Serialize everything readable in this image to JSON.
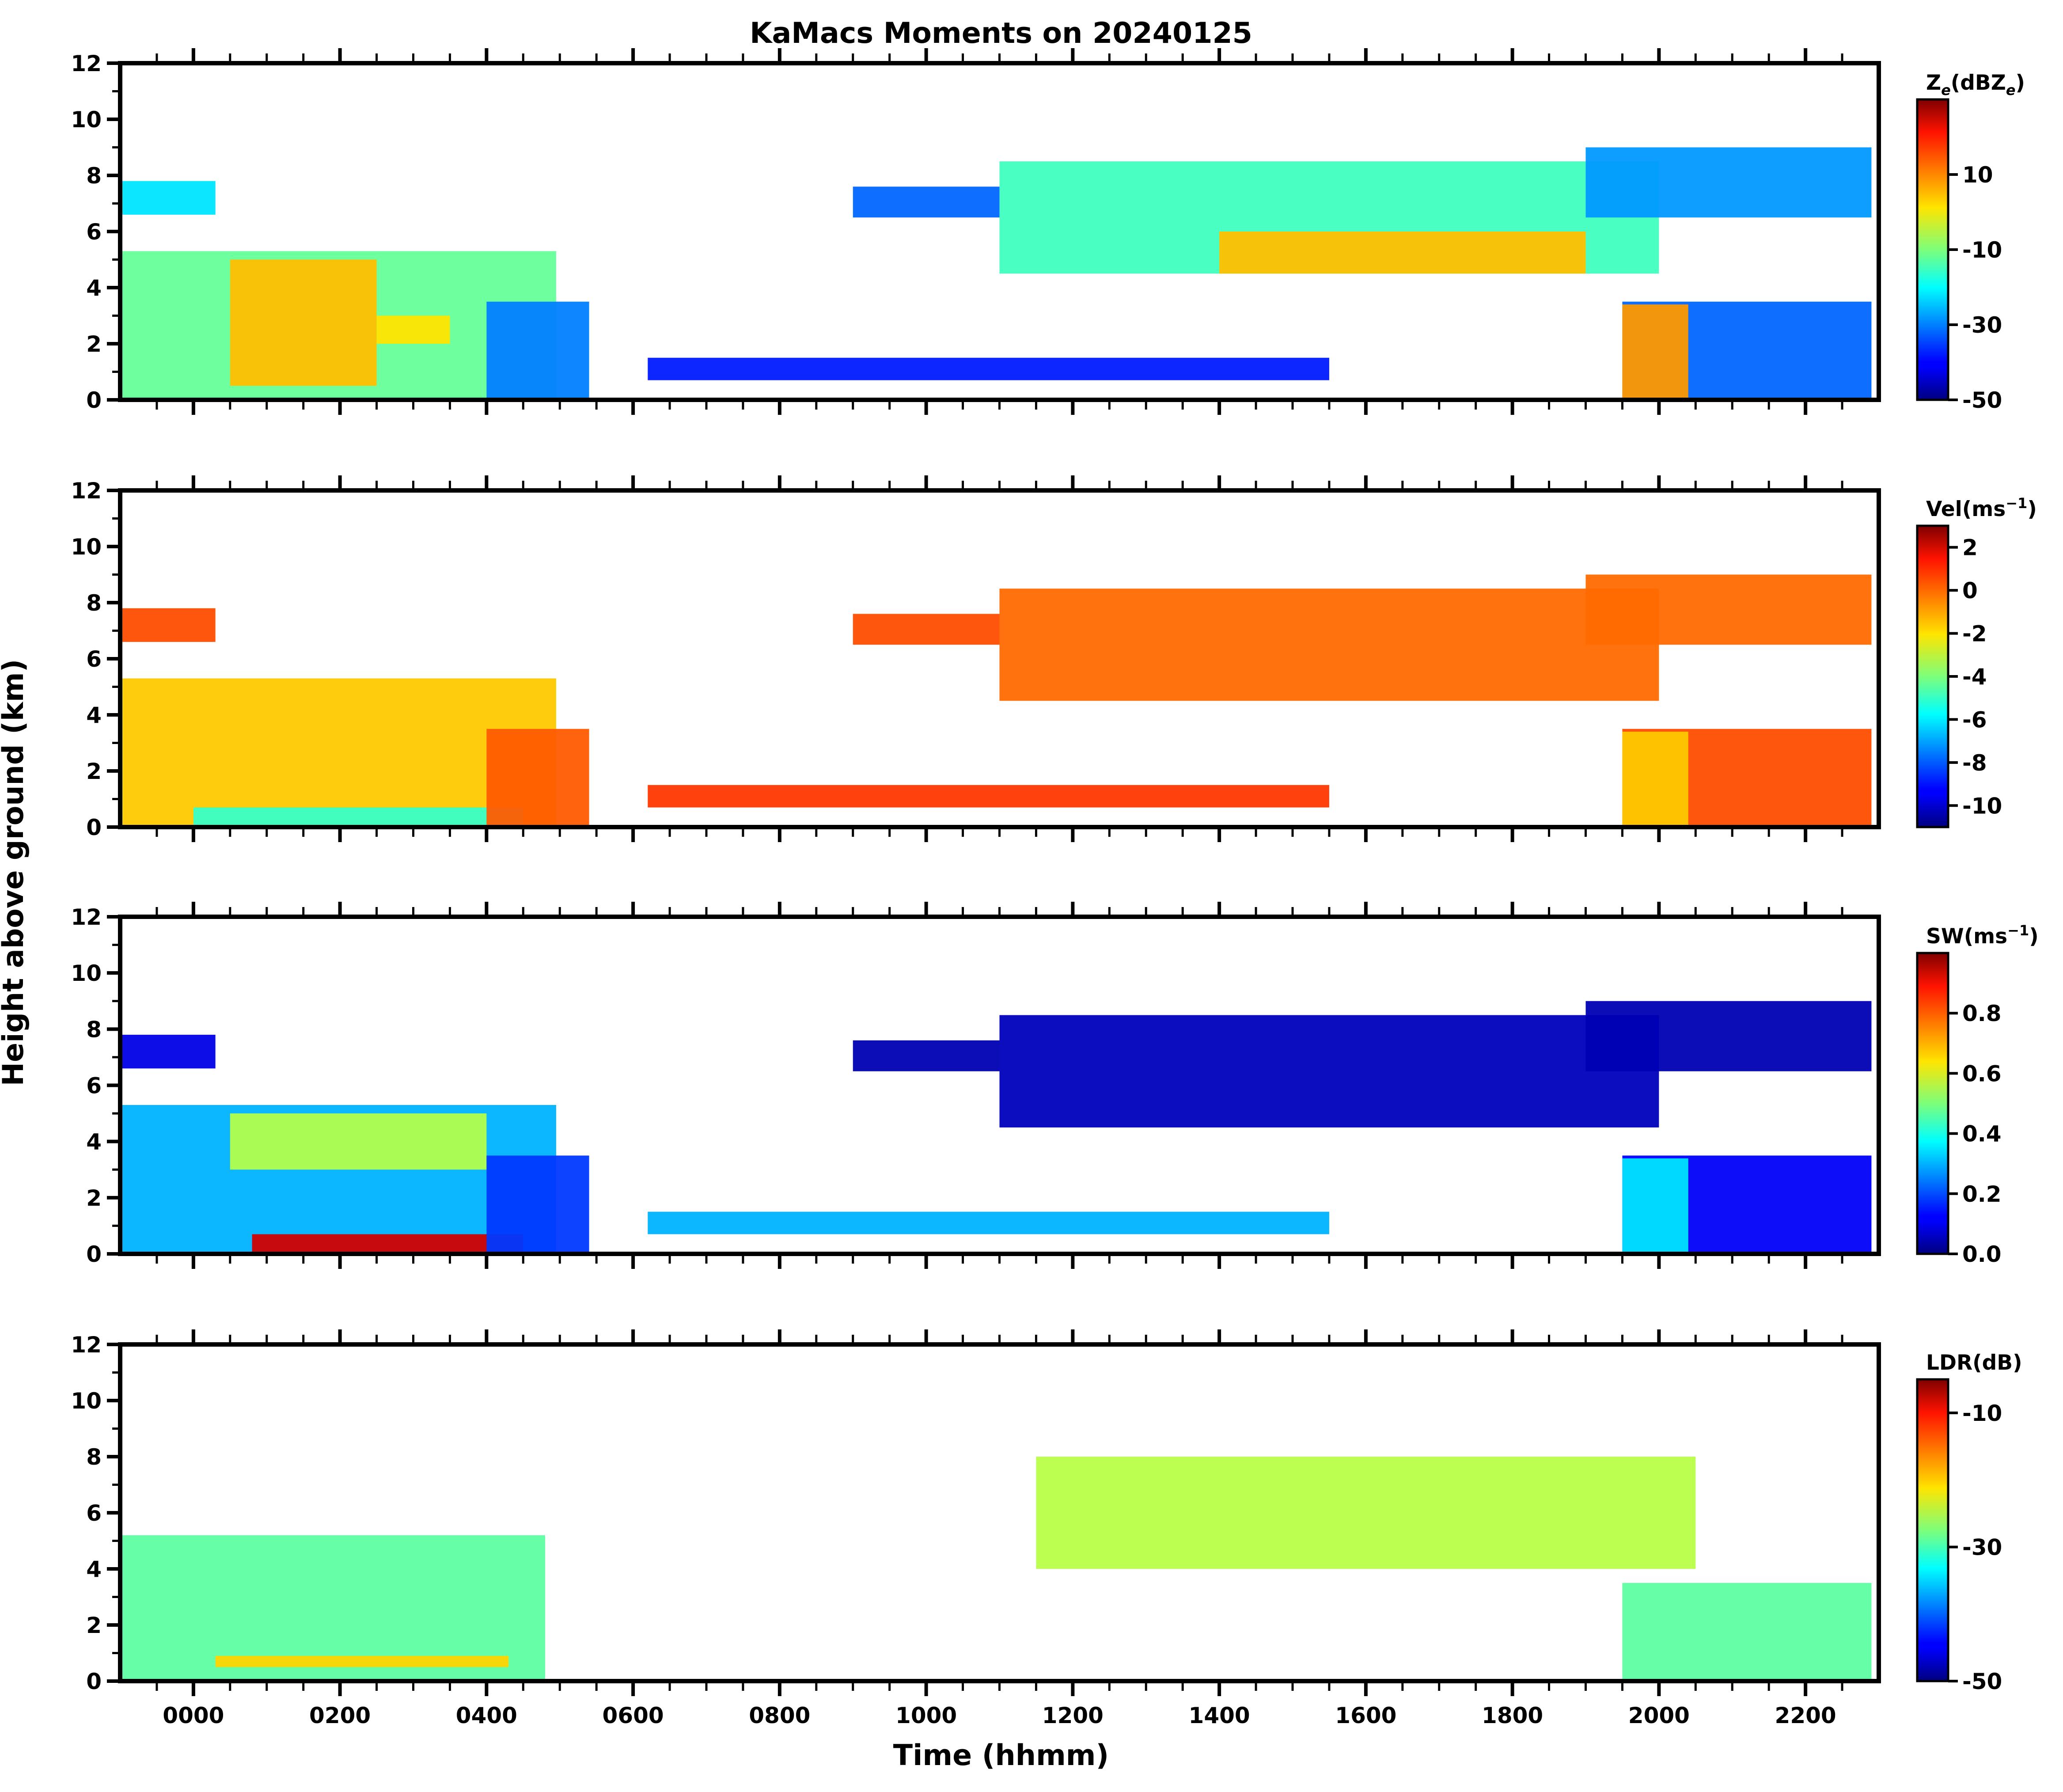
{
  "chart_data": {
    "type": "heatmap",
    "title": "KaMacs Moments on 20240125",
    "xlabel": "Time (hhmm)",
    "ylabel": "Height above ground (km)",
    "x_range_hours": [
      -1.0,
      23.0
    ],
    "x_ticks": [
      {
        "hour": 0,
        "label": "0000"
      },
      {
        "hour": 2,
        "label": "0200"
      },
      {
        "hour": 4,
        "label": "0400"
      },
      {
        "hour": 6,
        "label": "0600"
      },
      {
        "hour": 8,
        "label": "0800"
      },
      {
        "hour": 10,
        "label": "1000"
      },
      {
        "hour": 12,
        "label": "1200"
      },
      {
        "hour": 14,
        "label": "1400"
      },
      {
        "hour": 16,
        "label": "1600"
      },
      {
        "hour": 18,
        "label": "1800"
      },
      {
        "hour": 20,
        "label": "2000"
      },
      {
        "hour": 22,
        "label": "2200"
      }
    ],
    "y_range_km": [
      0,
      12
    ],
    "y_ticks": [
      "0",
      "2",
      "4",
      "6",
      "8",
      "10",
      "12"
    ],
    "panels": [
      {
        "name": "ze",
        "colorbar_title": "Z",
        "colorbar_sub": "e",
        "colorbar_title_mid": "(dBZ",
        "colorbar_sub2": "e",
        "colorbar_title_end": ")",
        "vmin": -50,
        "vmax": 30,
        "cb_ticks": [
          {
            "v": 10,
            "label": "10"
          },
          {
            "v": -10,
            "label": "-10"
          },
          {
            "v": -30,
            "label": "-30"
          },
          {
            "v": -50,
            "label": "-50"
          }
        ],
        "regions": [
          {
            "t0": -1.0,
            "t1": 4.95,
            "h0": 0.0,
            "h1": 5.3,
            "value": -12
          },
          {
            "t0": 0.5,
            "t1": 2.5,
            "h0": 0.5,
            "h1": 5.0,
            "value": 5
          },
          {
            "t0": 2.5,
            "t1": 3.5,
            "h0": 2.0,
            "h1": 3.0,
            "value": 2
          },
          {
            "t0": 4.0,
            "t1": 5.4,
            "h0": 0.0,
            "h1": 3.5,
            "value": -30
          },
          {
            "t0": -1.0,
            "t1": 0.3,
            "h0": 6.6,
            "h1": 7.8,
            "value": -22
          },
          {
            "t0": 9.0,
            "t1": 11.0,
            "h0": 6.5,
            "h1": 7.6,
            "value": -32
          },
          {
            "t0": 11.0,
            "t1": 20.0,
            "h0": 4.5,
            "h1": 8.5,
            "value": -15
          },
          {
            "t0": 14.0,
            "t1": 19.0,
            "h0": 4.5,
            "h1": 6.0,
            "value": 5
          },
          {
            "t0": 19.0,
            "t1": 22.9,
            "h0": 6.5,
            "h1": 9.0,
            "value": -28
          },
          {
            "t0": 19.5,
            "t1": 22.9,
            "h0": 0.0,
            "h1": 3.5,
            "value": -32
          },
          {
            "t0": 19.5,
            "t1": 20.4,
            "h0": 0.0,
            "h1": 3.4,
            "value": 8
          },
          {
            "t0": 6.2,
            "t1": 15.5,
            "h0": 0.7,
            "h1": 1.5,
            "value": -38
          }
        ]
      },
      {
        "name": "vel",
        "colorbar_title": "Vel(ms",
        "colorbar_sup": "−1",
        "colorbar_title_end": ")",
        "vmin": -11,
        "vmax": 3,
        "cb_ticks": [
          {
            "v": 2,
            "label": "2"
          },
          {
            "v": 0,
            "label": "0"
          },
          {
            "v": -2,
            "label": "-2"
          },
          {
            "v": -4,
            "label": "-4"
          },
          {
            "v": -6,
            "label": "-6"
          },
          {
            "v": -8,
            "label": "-8"
          },
          {
            "v": -10,
            "label": "-10"
          }
        ],
        "regions": [
          {
            "t0": -1.0,
            "t1": 4.95,
            "h0": 0.0,
            "h1": 5.3,
            "value": -1.5
          },
          {
            "t0": 0.0,
            "t1": 4.5,
            "h0": 0.0,
            "h1": 0.7,
            "value": -5.0
          },
          {
            "t0": 4.0,
            "t1": 5.4,
            "h0": 0.0,
            "h1": 3.5,
            "value": 0.0
          },
          {
            "t0": -1.0,
            "t1": 0.3,
            "h0": 6.6,
            "h1": 7.8,
            "value": 0.2
          },
          {
            "t0": 9.0,
            "t1": 11.0,
            "h0": 6.5,
            "h1": 7.6,
            "value": 0.2
          },
          {
            "t0": 11.0,
            "t1": 20.0,
            "h0": 4.5,
            "h1": 8.5,
            "value": -0.2
          },
          {
            "t0": 19.0,
            "t1": 22.9,
            "h0": 6.5,
            "h1": 9.0,
            "value": -0.2
          },
          {
            "t0": 19.5,
            "t1": 22.9,
            "h0": 0.0,
            "h1": 3.5,
            "value": 0.2
          },
          {
            "t0": 19.5,
            "t1": 20.4,
            "h0": 0.0,
            "h1": 3.4,
            "value": -1.5
          },
          {
            "t0": 6.2,
            "t1": 15.5,
            "h0": 0.7,
            "h1": 1.5,
            "value": 0.5
          }
        ]
      },
      {
        "name": "sw",
        "colorbar_title": "SW(ms",
        "colorbar_sup": "−1",
        "colorbar_title_end": ")",
        "vmin": 0.0,
        "vmax": 1.0,
        "cb_ticks": [
          {
            "v": 0.8,
            "label": "0.8"
          },
          {
            "v": 0.6,
            "label": "0.6"
          },
          {
            "v": 0.4,
            "label": "0.4"
          },
          {
            "v": 0.2,
            "label": "0.2"
          },
          {
            "v": 0.0,
            "label": "0.0"
          }
        ],
        "regions": [
          {
            "t0": -1.0,
            "t1": 4.95,
            "h0": 0.0,
            "h1": 5.3,
            "value": 0.3
          },
          {
            "t0": 0.5,
            "t1": 4.0,
            "h0": 3.0,
            "h1": 5.0,
            "value": 0.55
          },
          {
            "t0": 0.8,
            "t1": 4.5,
            "h0": 0.0,
            "h1": 0.7,
            "value": 0.92
          },
          {
            "t0": 4.0,
            "t1": 5.4,
            "h0": 0.0,
            "h1": 3.5,
            "value": 0.18
          },
          {
            "t0": -1.0,
            "t1": 0.3,
            "h0": 6.6,
            "h1": 7.8,
            "value": 0.1
          },
          {
            "t0": 9.0,
            "t1": 11.0,
            "h0": 6.5,
            "h1": 7.6,
            "value": 0.05
          },
          {
            "t0": 11.0,
            "t1": 20.0,
            "h0": 4.5,
            "h1": 8.5,
            "value": 0.06
          },
          {
            "t0": 19.0,
            "t1": 22.9,
            "h0": 6.5,
            "h1": 9.0,
            "value": 0.05
          },
          {
            "t0": 19.5,
            "t1": 22.9,
            "h0": 0.0,
            "h1": 3.5,
            "value": 0.12
          },
          {
            "t0": 19.5,
            "t1": 20.4,
            "h0": 0.0,
            "h1": 3.4,
            "value": 0.35
          },
          {
            "t0": 6.2,
            "t1": 15.5,
            "h0": 0.7,
            "h1": 1.5,
            "value": 0.3
          }
        ]
      },
      {
        "name": "ldr",
        "colorbar_title": "LDR(dB)",
        "vmin": -50,
        "vmax": -5,
        "cb_ticks": [
          {
            "v": -10,
            "label": "-10"
          },
          {
            "v": -30,
            "label": "-30"
          },
          {
            "v": -50,
            "label": "-50"
          }
        ],
        "regions": [
          {
            "t0": -1.0,
            "t1": 4.8,
            "h0": 0.0,
            "h1": 5.2,
            "value": -29
          },
          {
            "t0": 0.3,
            "t1": 4.3,
            "h0": 0.5,
            "h1": 0.9,
            "value": -20
          },
          {
            "t0": 11.5,
            "t1": 20.5,
            "h0": 4.0,
            "h1": 8.0,
            "value": -25
          },
          {
            "t0": 19.5,
            "t1": 22.9,
            "h0": 0.0,
            "h1": 3.5,
            "value": -29
          }
        ]
      }
    ]
  }
}
